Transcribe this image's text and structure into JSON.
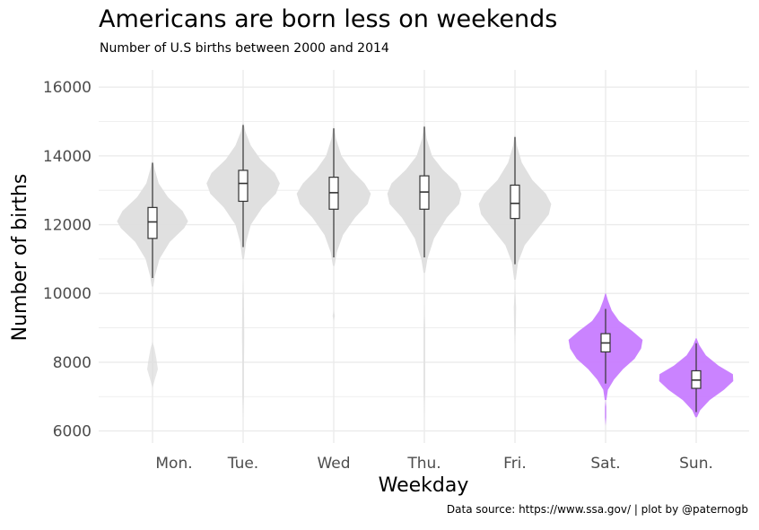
{
  "chart_data": {
    "type": "violin",
    "title": "Americans are born less on weekends",
    "subtitle": "Number of U.S births between 2000 and 2014",
    "caption": "Data source: https://www.ssa.gov/ | plot by @paternogb",
    "xlabel": "Weekday",
    "ylabel": "Number of births",
    "ylim": [
      5650,
      16500
    ],
    "yticks": [
      6000,
      8000,
      10000,
      12000,
      14000,
      16000
    ],
    "ytick_labels": [
      "6000",
      "8000",
      "10000",
      "12000",
      "14000",
      "16000"
    ],
    "categories": [
      "Mon.",
      "Tue.",
      "Wed",
      "Thu.",
      "Fri.",
      "Sat.",
      "Sun."
    ],
    "grid": true,
    "colors": {
      "weekday": "#dedede",
      "weekend": "#c77cff",
      "box": "#333333",
      "grid": "#ebebeb"
    },
    "series": [
      {
        "category": "Mon.",
        "group": "weekday",
        "min": 10450,
        "q1": 11600,
        "median": 12080,
        "q3": 12500,
        "max": 13800,
        "violin": [
          [
            10200,
            0.02
          ],
          [
            10500,
            0.06
          ],
          [
            11000,
            0.18
          ],
          [
            11500,
            0.45
          ],
          [
            11900,
            0.82
          ],
          [
            12100,
            0.92
          ],
          [
            12400,
            0.78
          ],
          [
            12800,
            0.4
          ],
          [
            13200,
            0.16
          ],
          [
            13600,
            0.06
          ],
          [
            13850,
            0.01
          ]
        ],
        "tail": [
          [
            7250,
            0.0
          ],
          [
            7500,
            0.06
          ],
          [
            7800,
            0.14
          ],
          [
            8100,
            0.1
          ],
          [
            8400,
            0.05
          ],
          [
            8600,
            0.0
          ]
        ]
      },
      {
        "category": "Tue.",
        "group": "weekday",
        "min": 11350,
        "q1": 12680,
        "median": 13200,
        "q3": 13580,
        "max": 14900,
        "violin": [
          [
            11000,
            0.02
          ],
          [
            11500,
            0.08
          ],
          [
            12000,
            0.2
          ],
          [
            12500,
            0.5
          ],
          [
            12900,
            0.85
          ],
          [
            13200,
            0.95
          ],
          [
            13500,
            0.82
          ],
          [
            13900,
            0.45
          ],
          [
            14300,
            0.2
          ],
          [
            14700,
            0.06
          ],
          [
            14950,
            0.01
          ]
        ],
        "tail": [
          [
            6400,
            0.0
          ],
          [
            7000,
            0.02
          ],
          [
            7800,
            0.02
          ],
          [
            8800,
            0.03
          ],
          [
            9800,
            0.02
          ],
          [
            10400,
            0.0
          ]
        ]
      },
      {
        "category": "Wed",
        "group": "weekday",
        "min": 11050,
        "q1": 12450,
        "median": 12930,
        "q3": 13380,
        "max": 14800,
        "violin": [
          [
            10800,
            0.02
          ],
          [
            11200,
            0.08
          ],
          [
            11700,
            0.24
          ],
          [
            12200,
            0.55
          ],
          [
            12600,
            0.88
          ],
          [
            12900,
            0.96
          ],
          [
            13200,
            0.8
          ],
          [
            13600,
            0.45
          ],
          [
            14000,
            0.2
          ],
          [
            14500,
            0.06
          ],
          [
            14850,
            0.01
          ]
        ],
        "tail": [
          [
            9200,
            0.0
          ],
          [
            9350,
            0.03
          ],
          [
            9500,
            0.0
          ]
        ]
      },
      {
        "category": "Thu.",
        "group": "weekday",
        "min": 11050,
        "q1": 12450,
        "median": 12950,
        "q3": 13420,
        "max": 14850,
        "violin": [
          [
            10600,
            0.02
          ],
          [
            11000,
            0.08
          ],
          [
            11600,
            0.25
          ],
          [
            12200,
            0.58
          ],
          [
            12600,
            0.9
          ],
          [
            12900,
            0.96
          ],
          [
            13200,
            0.85
          ],
          [
            13600,
            0.48
          ],
          [
            14000,
            0.2
          ],
          [
            14500,
            0.06
          ],
          [
            14900,
            0.01
          ]
        ],
        "tail": [
          [
            6400,
            0.0
          ],
          [
            7200,
            0.02
          ],
          [
            8000,
            0.02
          ],
          [
            9000,
            0.02
          ],
          [
            9800,
            0.0
          ]
        ]
      },
      {
        "category": "Fri.",
        "group": "weekday",
        "min": 10850,
        "q1": 12180,
        "median": 12620,
        "q3": 13150,
        "max": 14550,
        "violin": [
          [
            10400,
            0.02
          ],
          [
            10900,
            0.08
          ],
          [
            11400,
            0.25
          ],
          [
            11900,
            0.6
          ],
          [
            12300,
            0.88
          ],
          [
            12600,
            0.94
          ],
          [
            12900,
            0.8
          ],
          [
            13300,
            0.45
          ],
          [
            13800,
            0.18
          ],
          [
            14300,
            0.05
          ],
          [
            14600,
            0.01
          ]
        ],
        "tail": [
          [
            8500,
            0.0
          ],
          [
            9000,
            0.02
          ],
          [
            9600,
            0.03
          ],
          [
            10200,
            0.0
          ]
        ]
      },
      {
        "category": "Sat.",
        "group": "weekend",
        "min": 7380,
        "q1": 8300,
        "median": 8560,
        "q3": 8830,
        "max": 9550,
        "violin": [
          [
            6900,
            0.02
          ],
          [
            7200,
            0.06
          ],
          [
            7500,
            0.22
          ],
          [
            7800,
            0.45
          ],
          [
            8100,
            0.75
          ],
          [
            8400,
            0.92
          ],
          [
            8650,
            0.96
          ],
          [
            8900,
            0.7
          ],
          [
            9200,
            0.35
          ],
          [
            9500,
            0.16
          ],
          [
            9800,
            0.06
          ],
          [
            10000,
            0.01
          ]
        ],
        "tail": [
          [
            6150,
            0.0
          ],
          [
            6400,
            0.02
          ],
          [
            6700,
            0.02
          ],
          [
            6900,
            0.0
          ]
        ]
      },
      {
        "category": "Sun.",
        "group": "weekend",
        "min": 6550,
        "q1": 7240,
        "median": 7480,
        "q3": 7750,
        "max": 8550,
        "violin": [
          [
            6400,
            0.02
          ],
          [
            6600,
            0.1
          ],
          [
            6900,
            0.35
          ],
          [
            7200,
            0.72
          ],
          [
            7450,
            0.96
          ],
          [
            7650,
            0.95
          ],
          [
            7900,
            0.58
          ],
          [
            8200,
            0.25
          ],
          [
            8500,
            0.08
          ],
          [
            8700,
            0.01
          ]
        ],
        "tail": []
      }
    ]
  }
}
